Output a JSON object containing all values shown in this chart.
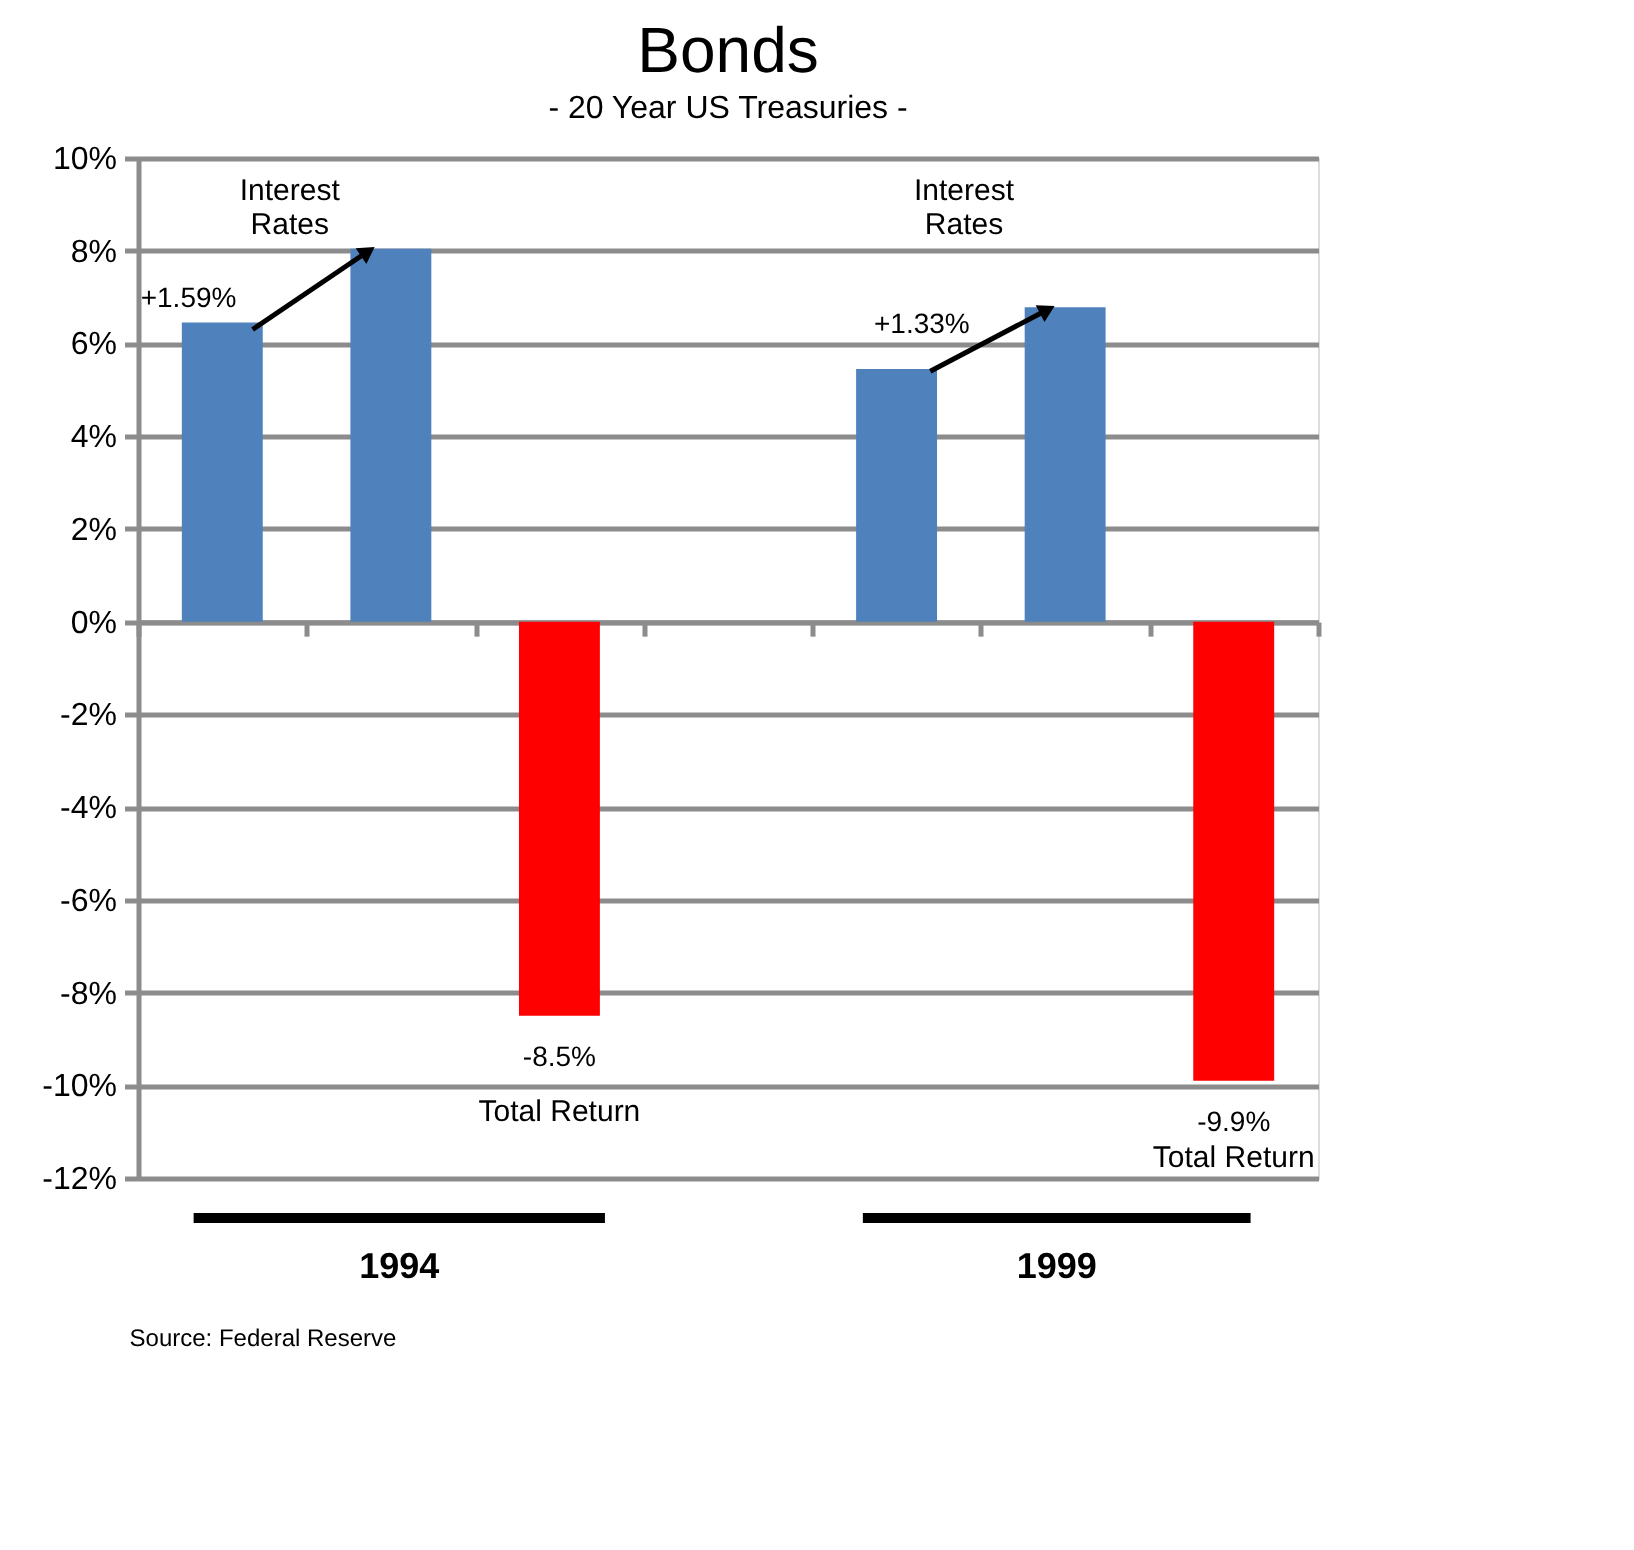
{
  "chart_data": {
    "type": "bar",
    "title": "Bonds",
    "subtitle": "- 20 Year US Treasuries -",
    "categories": [
      null,
      null,
      null,
      null,
      null,
      null,
      null
    ],
    "values": [
      6.45,
      8.04,
      -8.5,
      null,
      5.45,
      6.78,
      -9.9
    ],
    "colors": [
      "#4f81bd",
      "#4f81bd",
      "#ff0000",
      "#4f81bd",
      "#4f81bd",
      "#4f81bd",
      "#ff0000"
    ],
    "value_labels": [
      null,
      null,
      "-8.5%",
      null,
      null,
      null,
      "-9.9%"
    ],
    "ylim": [
      -12,
      10
    ],
    "yticks": [
      {
        "value": -12,
        "label": "-12%"
      },
      {
        "value": -10,
        "label": "-10%"
      },
      {
        "value": -8,
        "label": "-8%"
      },
      {
        "value": -6,
        "label": "-6%"
      },
      {
        "value": -4,
        "label": "-4%"
      },
      {
        "value": -2,
        "label": "-2%"
      },
      {
        "value": 0,
        "label": "0%"
      },
      {
        "value": 2,
        "label": "2%"
      },
      {
        "value": 4,
        "label": "4%"
      },
      {
        "value": 6,
        "label": "6%"
      },
      {
        "value": 8,
        "label": "8%"
      },
      {
        "value": 10,
        "label": "10%"
      }
    ],
    "grid": "y",
    "tick_labels": "y",
    "annotations": [
      "Interest Rates",
      "+1.59%",
      "Interest Rates",
      "+1.33%",
      "Total Return",
      "Total Return",
      "1994",
      "1999",
      "Source: Federal Reserve"
    ]
  }
}
